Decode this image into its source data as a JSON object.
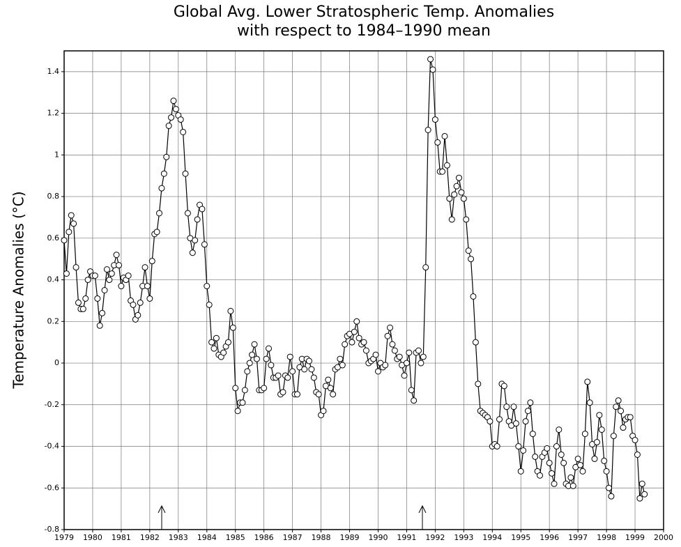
{
  "chart_data": {
    "type": "line",
    "title": "Global Avg. Lower Stratospheric Temp. Anomalies",
    "subtitle": "with respect to 1984–1990 mean",
    "y_label": "Temperature Anomalies (°C)",
    "xlim": [
      1979,
      2000
    ],
    "ylim": [
      -0.8,
      1.5
    ],
    "xticks": [
      1979,
      1980,
      1981,
      1982,
      1983,
      1984,
      1985,
      1986,
      1987,
      1988,
      1989,
      1990,
      1991,
      1992,
      1993,
      1994,
      1995,
      1996,
      1997,
      1998,
      1999,
      2000
    ],
    "yticks": [
      -0.8,
      -0.6,
      -0.4,
      -0.2,
      0,
      0.2,
      0.4,
      0.6,
      0.8,
      1,
      1.2,
      1.4
    ],
    "grid": true,
    "color": "#000000",
    "x": [
      1979,
      1979.083,
      1979.167,
      1979.25,
      1979.333,
      1979.417,
      1979.5,
      1979.583,
      1979.667,
      1979.75,
      1979.833,
      1979.917,
      1980,
      1980.083,
      1980.167,
      1980.25,
      1980.333,
      1980.417,
      1980.5,
      1980.583,
      1980.667,
      1980.75,
      1980.833,
      1980.917,
      1981,
      1981.083,
      1981.167,
      1981.25,
      1981.333,
      1981.417,
      1981.5,
      1981.583,
      1981.667,
      1981.75,
      1981.833,
      1981.917,
      1982,
      1982.083,
      1982.167,
      1982.25,
      1982.333,
      1982.417,
      1982.5,
      1982.583,
      1982.667,
      1982.75,
      1982.833,
      1982.917,
      1983,
      1983.083,
      1983.167,
      1983.25,
      1983.333,
      1983.417,
      1983.5,
      1983.583,
      1983.667,
      1983.75,
      1983.833,
      1983.917,
      1984,
      1984.083,
      1984.167,
      1984.25,
      1984.333,
      1984.417,
      1984.5,
      1984.583,
      1984.667,
      1984.75,
      1984.833,
      1984.917,
      1985,
      1985.083,
      1985.167,
      1985.25,
      1985.333,
      1985.417,
      1985.5,
      1985.583,
      1985.667,
      1985.75,
      1985.833,
      1985.917,
      1986,
      1986.083,
      1986.167,
      1986.25,
      1986.333,
      1986.417,
      1986.5,
      1986.583,
      1986.667,
      1986.75,
      1986.833,
      1986.917,
      1987,
      1987.083,
      1987.167,
      1987.25,
      1987.333,
      1987.417,
      1987.5,
      1987.583,
      1987.667,
      1987.75,
      1987.833,
      1987.917,
      1988,
      1988.083,
      1988.167,
      1988.25,
      1988.333,
      1988.417,
      1988.5,
      1988.583,
      1988.667,
      1988.75,
      1988.833,
      1988.917,
      1989,
      1989.083,
      1989.167,
      1989.25,
      1989.333,
      1989.417,
      1989.5,
      1989.583,
      1989.667,
      1989.75,
      1989.833,
      1989.917,
      1990,
      1990.083,
      1990.167,
      1990.25,
      1990.333,
      1990.417,
      1990.5,
      1990.583,
      1990.667,
      1990.75,
      1990.833,
      1990.917,
      1991,
      1991.083,
      1991.167,
      1991.25,
      1991.333,
      1991.417,
      1991.5,
      1991.583,
      1991.667,
      1991.75,
      1991.833,
      1991.917,
      1992,
      1992.083,
      1992.167,
      1992.25,
      1992.333,
      1992.417,
      1992.5,
      1992.583,
      1992.667,
      1992.75,
      1992.833,
      1992.917,
      1993,
      1993.083,
      1993.167,
      1993.25,
      1993.333,
      1993.417,
      1993.5,
      1993.583,
      1993.667,
      1993.75,
      1993.833,
      1993.917,
      1994,
      1994.083,
      1994.167,
      1994.25,
      1994.333,
      1994.417,
      1994.5,
      1994.583,
      1994.667,
      1994.75,
      1994.833,
      1994.917,
      1995,
      1995.083,
      1995.167,
      1995.25,
      1995.333,
      1995.417,
      1995.5,
      1995.583,
      1995.667,
      1995.75,
      1995.833,
      1995.917,
      1996,
      1996.083,
      1996.167,
      1996.25,
      1996.333,
      1996.417,
      1996.5,
      1996.583,
      1996.667,
      1996.75,
      1996.833,
      1996.917,
      1997,
      1997.083,
      1997.167,
      1997.25,
      1997.333,
      1997.417,
      1997.5,
      1997.583,
      1997.667,
      1997.75,
      1997.833,
      1997.917,
      1998,
      1998.083,
      1998.167,
      1998.25,
      1998.333,
      1998.417,
      1998.5,
      1998.583,
      1998.667,
      1998.75,
      1998.833,
      1998.917,
      1999,
      1999.083,
      1999.167,
      1999.25,
      1999.333
    ],
    "values": [
      0.59,
      0.43,
      0.63,
      0.71,
      0.67,
      0.46,
      0.29,
      0.26,
      0.26,
      0.31,
      0.4,
      0.44,
      0.42,
      0.42,
      0.31,
      0.18,
      0.24,
      0.35,
      0.45,
      0.4,
      0.43,
      0.47,
      0.52,
      0.47,
      0.37,
      0.41,
      0.4,
      0.42,
      0.3,
      0.28,
      0.21,
      0.23,
      0.29,
      0.37,
      0.46,
      0.37,
      0.31,
      0.49,
      0.62,
      0.63,
      0.72,
      0.84,
      0.91,
      0.99,
      1.14,
      1.18,
      1.26,
      1.22,
      1.19,
      1.17,
      1.11,
      0.91,
      0.72,
      0.6,
      0.53,
      0.59,
      0.69,
      0.76,
      0.74,
      0.57,
      0.37,
      0.28,
      0.1,
      0.07,
      0.12,
      0.04,
      0.03,
      0.05,
      0.08,
      0.1,
      0.25,
      0.17,
      -0.12,
      -0.23,
      -0.19,
      -0.19,
      -0.13,
      -0.04,
      0.0,
      0.04,
      0.09,
      0.02,
      -0.13,
      -0.13,
      -0.12,
      0.02,
      0.07,
      -0.01,
      -0.07,
      -0.07,
      -0.06,
      -0.15,
      -0.14,
      -0.06,
      -0.07,
      0.03,
      -0.04,
      -0.15,
      -0.15,
      -0.02,
      0.02,
      -0.03,
      0.02,
      0.01,
      -0.03,
      -0.07,
      -0.14,
      -0.15,
      -0.25,
      -0.23,
      -0.11,
      -0.08,
      -0.12,
      -0.15,
      -0.03,
      -0.02,
      0.02,
      -0.01,
      0.09,
      0.13,
      0.14,
      0.1,
      0.15,
      0.2,
      0.12,
      0.09,
      0.1,
      0.06,
      0.0,
      0.01,
      0.02,
      0.04,
      -0.04,
      0.0,
      -0.02,
      -0.01,
      0.13,
      0.17,
      0.09,
      0.06,
      0.02,
      0.03,
      -0.01,
      -0.06,
      0.0,
      0.05,
      -0.13,
      -0.18,
      0.05,
      0.06,
      0.0,
      0.03,
      0.46,
      1.12,
      1.46,
      1.41,
      1.17,
      1.06,
      0.92,
      0.92,
      1.09,
      0.95,
      0.79,
      0.69,
      0.81,
      0.85,
      0.89,
      0.82,
      0.79,
      0.69,
      0.54,
      0.5,
      0.32,
      0.1,
      -0.1,
      -0.23,
      -0.24,
      -0.25,
      -0.26,
      -0.28,
      -0.4,
      -0.39,
      -0.4,
      -0.27,
      -0.1,
      -0.11,
      -0.21,
      -0.28,
      -0.3,
      -0.21,
      -0.29,
      -0.4,
      -0.52,
      -0.42,
      -0.28,
      -0.23,
      -0.19,
      -0.34,
      -0.45,
      -0.52,
      -0.54,
      -0.45,
      -0.43,
      -0.41,
      -0.48,
      -0.53,
      -0.58,
      -0.4,
      -0.32,
      -0.44,
      -0.48,
      -0.58,
      -0.59,
      -0.55,
      -0.59,
      -0.5,
      -0.46,
      -0.49,
      -0.52,
      -0.34,
      -0.09,
      -0.19,
      -0.39,
      -0.46,
      -0.38,
      -0.25,
      -0.32,
      -0.47,
      -0.52,
      -0.6,
      -0.64,
      -0.35,
      -0.21,
      -0.18,
      -0.23,
      -0.31,
      -0.27,
      -0.26,
      -0.26,
      -0.35,
      -0.37,
      -0.44,
      -0.65,
      -0.58,
      -0.63
    ]
  }
}
